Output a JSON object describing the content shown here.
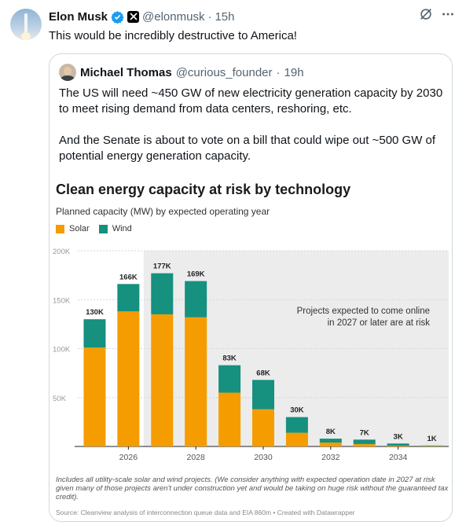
{
  "tweet": {
    "author_name": "Elon Musk",
    "author_handle": "@elonmusk",
    "separator": "·",
    "time": "15h",
    "text": "This would be incredibly destructive to America!"
  },
  "quote": {
    "author_name": "Michael Thomas",
    "author_handle": "@curious_founder",
    "separator": "·",
    "time": "19h",
    "paragraphs": [
      "The US will need ~450 GW of new electricity generation capacity by 2030 to meet rising demand from data centers, reshoring, etc.",
      "And the Senate is about to vote on a bill that could wipe out ~500 GW of potential energy generation capacity."
    ]
  },
  "colors": {
    "solar": "#f59c00",
    "wind": "#16907f",
    "shade": "#ececec"
  },
  "chart_data": {
    "type": "bar",
    "stacked": true,
    "title": "Clean energy capacity at risk by technology",
    "subtitle": "Planned capacity (MW) by expected operating year",
    "years": [
      2025,
      2026,
      2027,
      2028,
      2029,
      2030,
      2031,
      2032,
      2033,
      2034,
      2035
    ],
    "x_tick_labels": [
      "2026",
      "2028",
      "2030",
      "2032",
      "2034"
    ],
    "x_ticks": [
      2026,
      2028,
      2030,
      2032,
      2034
    ],
    "ylim": [
      0,
      200000
    ],
    "y_ticks": [
      {
        "value": 50000,
        "label": "50K"
      },
      {
        "value": 100000,
        "label": "100K"
      },
      {
        "value": 150000,
        "label": "150K"
      },
      {
        "value": 200000,
        "label": "200K"
      }
    ],
    "series": [
      {
        "name": "Solar",
        "values": [
          101000,
          138000,
          135000,
          132000,
          55000,
          38000,
          14000,
          4000,
          2500,
          700,
          500
        ]
      },
      {
        "name": "Wind",
        "values": [
          29000,
          28000,
          42000,
          37000,
          28000,
          30000,
          16000,
          4000,
          4500,
          2300,
          500
        ]
      }
    ],
    "total_labels": [
      "130K",
      "166K",
      "177K",
      "169K",
      "83K",
      "68K",
      "30K",
      "8K",
      "7K",
      "3K",
      "1K"
    ],
    "shaded_from_year": 2027,
    "annotation": [
      "Projects expected to come online",
      "in 2027 or later are at risk"
    ],
    "footnote": "Includes all utility-scale solar and wind projects. (We consider anything with expected operation date in 2027 at risk given many of those projects aren't under construction yet and would be taking on huge risk without the guaranteed tax credit).",
    "source": "Source: Cleanview analysis of interconnection queue data and EIA 860m • Created with Datawrapper"
  }
}
